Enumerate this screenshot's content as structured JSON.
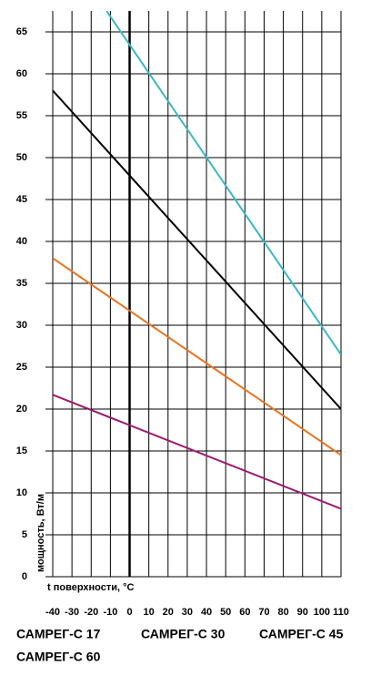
{
  "chart_data": {
    "type": "line",
    "x_label": "t поверхности, °C",
    "y_label": "мощность, Вт/м",
    "xlim": [
      -40,
      110
    ],
    "xticks": [
      -40,
      -30,
      -20,
      -10,
      0,
      10,
      20,
      30,
      40,
      50,
      60,
      70,
      80,
      90,
      100,
      110
    ],
    "ylim": [
      0,
      67.5
    ],
    "yticks": [
      0,
      5,
      10,
      15,
      20,
      25,
      30,
      35,
      40,
      45,
      50,
      55,
      60,
      65
    ],
    "grid": true,
    "series": [
      {
        "name": "САМРЕГ-С 17",
        "color": "#9b1b6e",
        "x": [
          -40,
          110
        ],
        "values": [
          21.7,
          8.1
        ]
      },
      {
        "name": "САМРЕГ-С 30",
        "color": "#e8731c",
        "x": [
          -40,
          110
        ],
        "values": [
          38,
          14.5
        ]
      },
      {
        "name": "САМРЕГ-С 45",
        "color": "#000000",
        "x": [
          -40,
          110
        ],
        "values": [
          58,
          20
        ]
      },
      {
        "name": "САМРЕГ-С 60",
        "color": "#3bb7c4",
        "x": [
          -12,
          110
        ],
        "values": [
          67.5,
          26.5
        ]
      }
    ]
  }
}
